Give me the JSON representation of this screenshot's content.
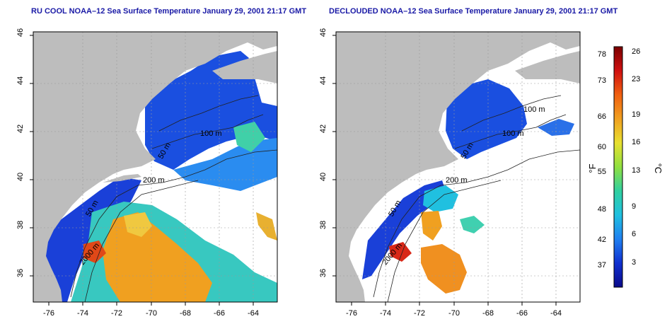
{
  "panels": [
    {
      "id": "ru-cool",
      "title": "RU COOL NOAA–12 Sea Surface Temperature January 29, 2001 21:17 GMT",
      "contour_labels": [
        "100 m",
        "50 m",
        "200 m",
        "50 m",
        "2000 m"
      ]
    },
    {
      "id": "declouded",
      "title": "DECLOUDED NOAA–12 Sea Surface Temperature January 29, 2001 21:17 GMT",
      "contour_labels": [
        "100 m",
        "100 m",
        "50 m",
        "200 m",
        "50 m",
        "2000 m"
      ]
    }
  ],
  "axes": {
    "lon_ticks": [
      "-76",
      "-74",
      "-72",
      "-70",
      "-68",
      "-66",
      "-64"
    ],
    "lat_ticks": [
      "46",
      "44",
      "42",
      "40",
      "38",
      "36"
    ]
  },
  "colorbar": {
    "fahrenheit_label": "°F",
    "celsius_label": "°C",
    "fahrenheit_ticks": [
      "78",
      "73",
      "66",
      "60",
      "55",
      "48",
      "42",
      "37"
    ],
    "celsius_ticks": [
      "26",
      "23",
      "19",
      "16",
      "13",
      "9",
      "6",
      "3"
    ],
    "colors": [
      "#7a0000",
      "#d01010",
      "#f06010",
      "#f0a020",
      "#e8e030",
      "#90e040",
      "#30d0a0",
      "#20c0e0",
      "#2080f0",
      "#1030d0",
      "#0a0a8a"
    ]
  },
  "colors": {
    "land": "#bdbdbd",
    "cloud": "#ffffff",
    "title": "#1a1aa6"
  }
}
